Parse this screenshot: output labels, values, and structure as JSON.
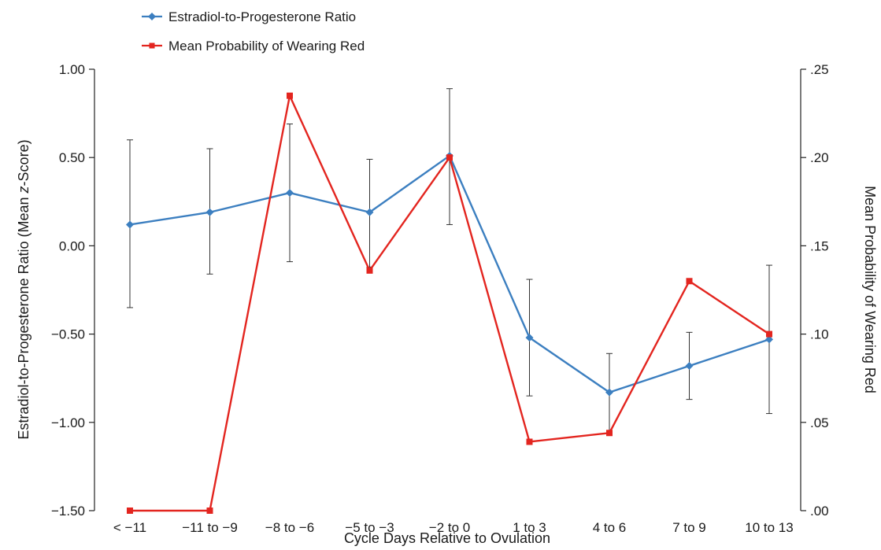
{
  "chart_data": {
    "type": "line",
    "title": "",
    "xlabel": "Cycle Days Relative to Ovulation",
    "ylabel_left_prefix": "Estradiol-to-Progesterone Ratio (Mean ",
    "ylabel_left_italic": "z",
    "ylabel_left_suffix": "-Score)",
    "ylabel_right": "Mean Probability of Wearing Red",
    "categories": [
      "< −11",
      "−11 to −9",
      "−8 to −6",
      "−5 to −3",
      "−2 to 0",
      "1 to 3",
      "4 to 6",
      "7 to 9",
      "10 to 13"
    ],
    "ylim_left": [
      -1.5,
      1.0
    ],
    "yticks_left": [
      -1.5,
      -1.0,
      -0.5,
      0.0,
      0.5,
      1.0
    ],
    "yticklabels_left": [
      "−1.50",
      "−1.00",
      "−0.50",
      "0.00",
      "0.50",
      "1.00"
    ],
    "ylim_right": [
      0.0,
      0.25
    ],
    "yticks_right": [
      0.0,
      0.05,
      0.1,
      0.15,
      0.2,
      0.25
    ],
    "yticklabels_right": [
      ".00",
      ".05",
      ".10",
      ".15",
      ".20",
      ".25"
    ],
    "grid": false,
    "legend_position": "top-left",
    "series": [
      {
        "name": "Estradiol-to-Progesterone Ratio",
        "axis": "left",
        "color": "#3c7fc0",
        "marker": "diamond",
        "values": [
          0.12,
          0.19,
          0.3,
          0.19,
          0.51,
          -0.52,
          -0.83,
          -0.68,
          -0.53
        ],
        "error_low": [
          -0.35,
          -0.16,
          -0.09,
          -0.12,
          0.12,
          -0.85,
          -1.05,
          -0.87,
          -0.95
        ],
        "error_high": [
          0.6,
          0.55,
          0.69,
          0.49,
          0.89,
          -0.19,
          -0.61,
          -0.49,
          -0.11
        ]
      },
      {
        "name": "Mean Probability of Wearing Red",
        "axis": "right",
        "color": "#e3251f",
        "marker": "square",
        "values": [
          0.0,
          0.0,
          0.235,
          0.136,
          0.2,
          0.039,
          0.044,
          0.13,
          0.1
        ]
      }
    ]
  }
}
